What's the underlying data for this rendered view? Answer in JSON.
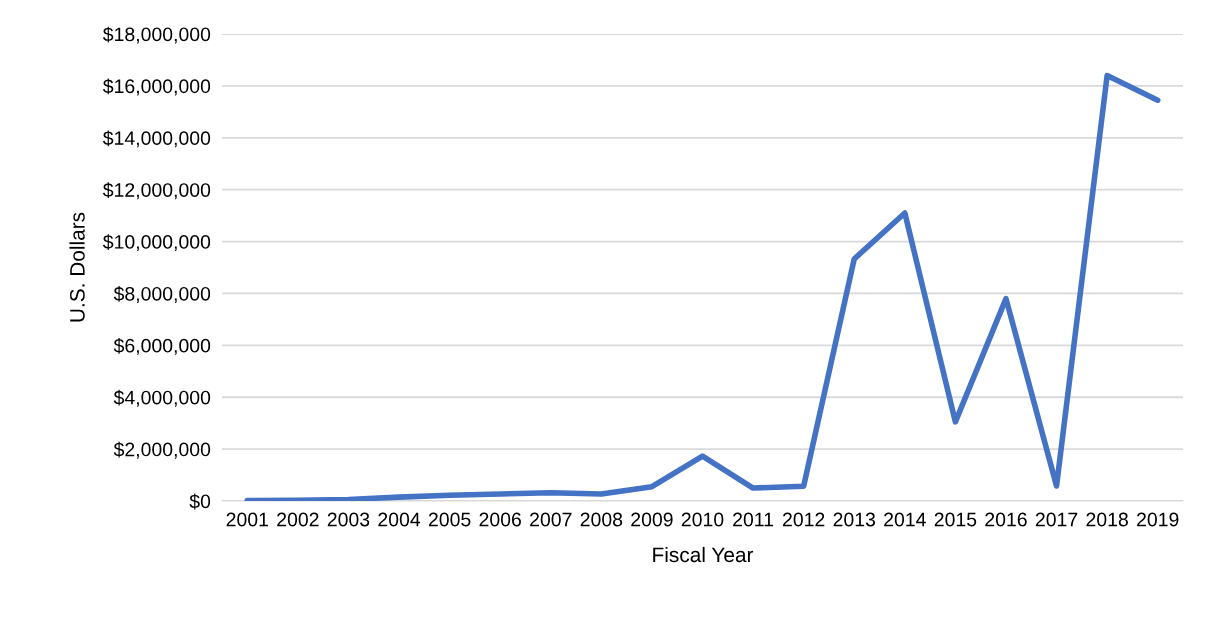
{
  "chart_data": {
    "type": "line",
    "xlabel": "Fiscal Year",
    "ylabel": "U.S. Dollars",
    "categories": [
      "2001",
      "2002",
      "2003",
      "2004",
      "2005",
      "2006",
      "2007",
      "2008",
      "2009",
      "2010",
      "2011",
      "2012",
      "2013",
      "2014",
      "2015",
      "2016",
      "2017",
      "2018",
      "2019"
    ],
    "series": [
      {
        "color": "#4472c4",
        "values": [
          20000,
          30000,
          60000,
          150000,
          220000,
          270000,
          320000,
          270000,
          550000,
          1730000,
          500000,
          570000,
          9330000,
          11100000,
          3050000,
          7800000,
          580000,
          16400000,
          15450000
        ]
      }
    ],
    "ylim": [
      0,
      18000000
    ],
    "yticks": [
      {
        "value": 0,
        "label": "$0"
      },
      {
        "value": 2000000,
        "label": "$2,000,000"
      },
      {
        "value": 4000000,
        "label": "$4,000,000"
      },
      {
        "value": 6000000,
        "label": "$6,000,000"
      },
      {
        "value": 8000000,
        "label": "$8,000,000"
      },
      {
        "value": 10000000,
        "label": "$10,000,000"
      },
      {
        "value": 12000000,
        "label": "$12,000,000"
      },
      {
        "value": 14000000,
        "label": "$14,000,000"
      },
      {
        "value": 16000000,
        "label": "$16,000,000"
      },
      {
        "value": 18000000,
        "label": "$18,000,000"
      }
    ],
    "grid": "y",
    "line_style": "solid"
  }
}
